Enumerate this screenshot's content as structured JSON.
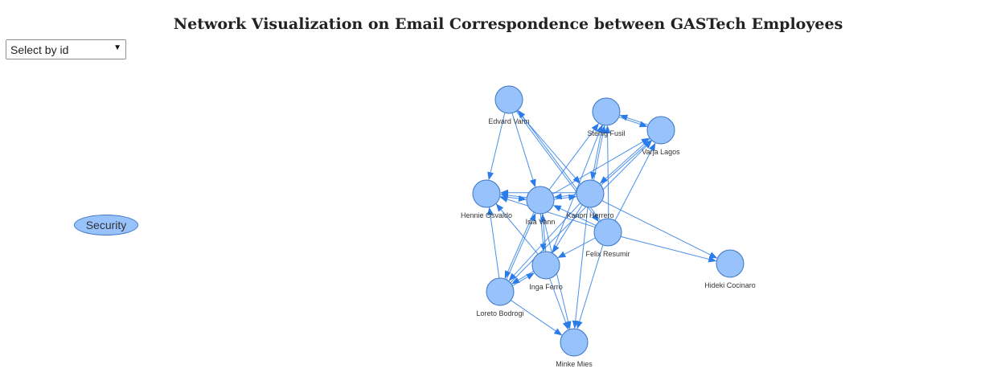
{
  "page": {
    "title": "Network Visualization on Email Correspondence between GASTech Employees"
  },
  "select": {
    "value": "Select by id",
    "arrow_icon": "triangle-down-icon"
  },
  "legend": {
    "group": "Security"
  },
  "colors": {
    "node_fill": "#97c2fc",
    "node_border": "#3a75c4",
    "edge": "#2b7ce9"
  },
  "nodes": [
    {
      "id": "edvard",
      "label": "Edvard Vann"
    },
    {
      "id": "stenig",
      "label": "Stenig Fusil"
    },
    {
      "id": "varja",
      "label": "Varja Lagos"
    },
    {
      "id": "hennie",
      "label": "Hennie Osvaldo"
    },
    {
      "id": "isia",
      "label": "Isia Vann"
    },
    {
      "id": "kanon",
      "label": "Kanon Herrero"
    },
    {
      "id": "felix",
      "label": "Felix Resumir"
    },
    {
      "id": "inga",
      "label": "Inga Ferro"
    },
    {
      "id": "loreto",
      "label": "Loreto Bodrogi"
    },
    {
      "id": "minke",
      "label": "Minke Mies"
    },
    {
      "id": "hideki",
      "label": "Hideki Cocinaro"
    }
  ],
  "edges": [
    {
      "from": "edvard",
      "to": "hennie"
    },
    {
      "from": "edvard",
      "to": "isia"
    },
    {
      "from": "edvard",
      "to": "kanon"
    },
    {
      "from": "edvard",
      "to": "felix"
    },
    {
      "from": "felix",
      "to": "edvard"
    },
    {
      "from": "stenig",
      "to": "varja"
    },
    {
      "from": "varja",
      "to": "stenig"
    },
    {
      "from": "isia",
      "to": "stenig"
    },
    {
      "from": "kanon",
      "to": "stenig"
    },
    {
      "from": "felix",
      "to": "stenig"
    },
    {
      "from": "inga",
      "to": "stenig"
    },
    {
      "from": "stenig",
      "to": "kanon"
    },
    {
      "from": "isia",
      "to": "varja"
    },
    {
      "from": "kanon",
      "to": "varja"
    },
    {
      "from": "felix",
      "to": "varja"
    },
    {
      "from": "varja",
      "to": "kanon"
    },
    {
      "from": "loreto",
      "to": "varja"
    },
    {
      "from": "isia",
      "to": "hennie"
    },
    {
      "from": "hennie",
      "to": "isia"
    },
    {
      "from": "kanon",
      "to": "hennie"
    },
    {
      "from": "felix",
      "to": "hennie"
    },
    {
      "from": "inga",
      "to": "hennie"
    },
    {
      "from": "isia",
      "to": "kanon"
    },
    {
      "from": "kanon",
      "to": "isia"
    },
    {
      "from": "felix",
      "to": "isia"
    },
    {
      "from": "isia",
      "to": "inga"
    },
    {
      "from": "inga",
      "to": "isia"
    },
    {
      "from": "isia",
      "to": "loreto"
    },
    {
      "from": "loreto",
      "to": "isia"
    },
    {
      "from": "isia",
      "to": "minke"
    },
    {
      "from": "kanon",
      "to": "inga"
    },
    {
      "from": "kanon",
      "to": "loreto"
    },
    {
      "from": "kanon",
      "to": "minke"
    },
    {
      "from": "kanon",
      "to": "hideki"
    },
    {
      "from": "felix",
      "to": "inga"
    },
    {
      "from": "felix",
      "to": "minke"
    },
    {
      "from": "felix",
      "to": "hideki"
    },
    {
      "from": "inga",
      "to": "loreto"
    },
    {
      "from": "loreto",
      "to": "inga"
    },
    {
      "from": "inga",
      "to": "minke"
    },
    {
      "from": "loreto",
      "to": "minke"
    },
    {
      "from": "loreto",
      "to": "hennie"
    }
  ]
}
